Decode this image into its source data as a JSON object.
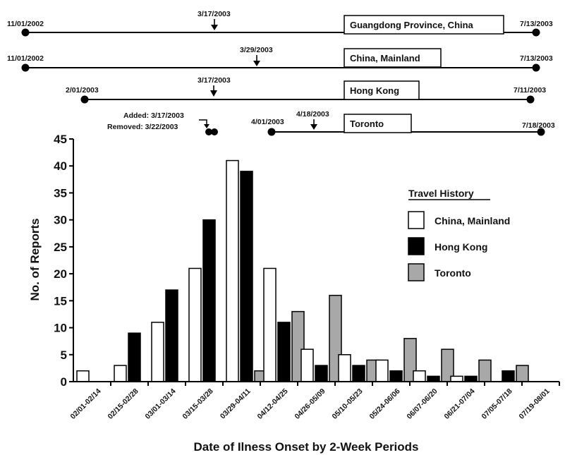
{
  "timelines": [
    {
      "start": "11/01/2002",
      "end": "7/13/2003",
      "marker": "3/17/2003",
      "label": "Guangdong Province, China"
    },
    {
      "start": "11/01/2002",
      "end": "7/13/2003",
      "marker": "3/29/2003",
      "label": "China, Mainland"
    },
    {
      "start": "2/01/2003",
      "end": "7/11/2003",
      "marker": "3/17/2003",
      "label": "Hong Kong"
    },
    {
      "start": "4/01/2003",
      "end": "7/18/2003",
      "marker": "4/18/2003",
      "label": "Toronto"
    }
  ],
  "toronto_note": {
    "added": "Added: 3/17/2003",
    "removed": "Removed: 3/22/2003"
  },
  "colors": {
    "china": "#ffffff",
    "hongkong": "#000000",
    "toronto": "#a8a8a8",
    "outline": "#000000"
  },
  "chart_data": {
    "type": "bar",
    "xlabel": "Date of Ilness Onset by 2-Week Periods",
    "ylabel": "No. of Reports",
    "ylim": [
      0,
      45
    ],
    "yticks": [
      0,
      5,
      10,
      15,
      20,
      25,
      30,
      35,
      40,
      45
    ],
    "categories": [
      "02/01-02/14",
      "02/15-02/28",
      "03/01-03/14",
      "03/15-03/28",
      "03/29-04/11",
      "04/12-04/25",
      "04/26-05/09",
      "05/10-05/23",
      "05/24-06/06",
      "06/07-06/20",
      "06/21-07/04",
      "07/05-07/18",
      "07/19-08/01"
    ],
    "legend_title": "Travel History",
    "legend_position": "right",
    "series": [
      {
        "name": "China, Mainland",
        "color": "#ffffff",
        "values": [
          2,
          3,
          11,
          21,
          41,
          21,
          6,
          5,
          4,
          2,
          1,
          0,
          0
        ]
      },
      {
        "name": "Hong Kong",
        "color": "#000000",
        "values": [
          0,
          9,
          17,
          30,
          39,
          11,
          3,
          3,
          2,
          1,
          1,
          2,
          0
        ]
      },
      {
        "name": "Toronto",
        "color": "#a8a8a8",
        "values": [
          0,
          0,
          0,
          0,
          2,
          13,
          16,
          4,
          8,
          6,
          4,
          3,
          0
        ]
      }
    ]
  }
}
